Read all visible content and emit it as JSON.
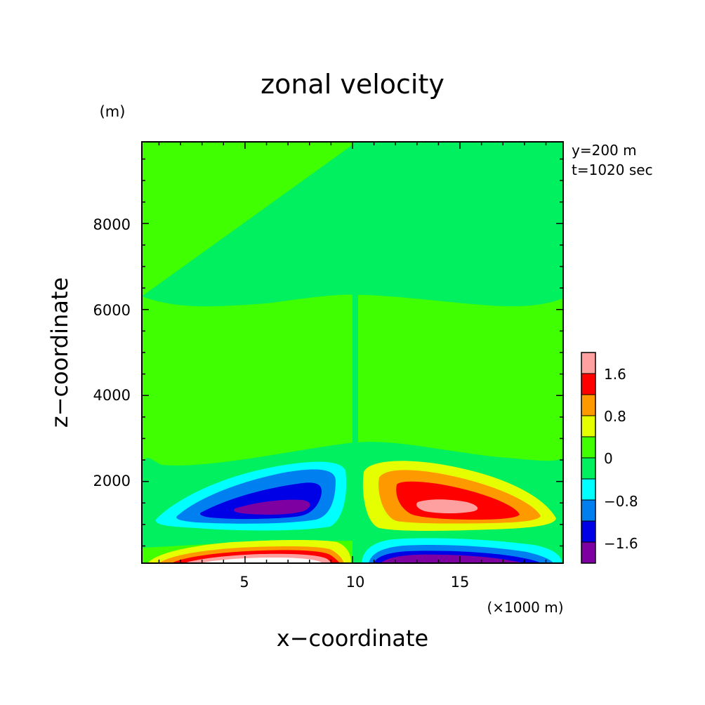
{
  "chart_data": {
    "type": "contour",
    "title": "zonal velocity",
    "xlabel": "x−coordinate",
    "ylabel": "z−coordinate",
    "x_unit": "(×1000 m)",
    "y_unit": "(m)",
    "annotations": [
      "y=200 m",
      "t=1020 sec"
    ],
    "xlim": [
      0.2,
      19.8
    ],
    "ylim": [
      100,
      9900
    ],
    "x_ticks": [
      5,
      10,
      15
    ],
    "x_tick_labels": [
      "5",
      "10",
      "15"
    ],
    "y_ticks": [
      2000,
      4000,
      6000,
      8000
    ],
    "y_tick_labels": [
      "2000",
      "4000",
      "6000",
      "8000"
    ],
    "colorbar": {
      "levels": [
        -2.0,
        -1.6,
        -1.2,
        -0.8,
        -0.4,
        0,
        0.4,
        0.8,
        1.2,
        1.6,
        2.0
      ],
      "tick_labels": [
        "1.6",
        "0.8",
        "0",
        "−0.8",
        "−1.6"
      ],
      "colors": [
        "#7f00a0",
        "#0000e6",
        "#0080f0",
        "#00ffff",
        "#00f060",
        "#40ff00",
        "#e6ff00",
        "#ff9900",
        "#ff0000",
        "#ffa0a0"
      ]
    },
    "features": [
      {
        "name": "upper-left-vortex",
        "x_center": 5.8,
        "z_center": 1400,
        "min_value": -2.0
      },
      {
        "name": "upper-right-vortex",
        "x_center": 14.2,
        "z_center": 1400,
        "max_value": 2.0
      },
      {
        "name": "lower-left-surface-jet",
        "x_center": 6.0,
        "z_center": 100,
        "max_value": 2.0
      },
      {
        "name": "lower-right-surface-jet",
        "x_center": 14.5,
        "z_center": 100,
        "min_value": -2.0
      }
    ]
  }
}
